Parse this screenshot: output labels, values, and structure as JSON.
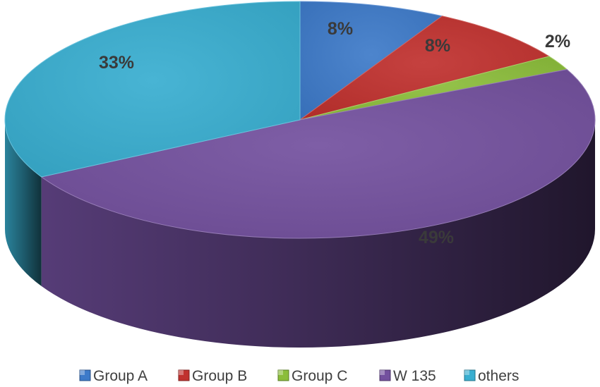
{
  "chart_data": {
    "type": "pie",
    "style": "3d",
    "categories": [
      "Group A",
      "Group B",
      "Group C",
      "W 135",
      "others"
    ],
    "values": [
      8,
      8,
      2,
      49,
      33
    ],
    "unit": "%",
    "data_labels": [
      "8%",
      "8%",
      "2%",
      "49%",
      "33%"
    ],
    "colors": [
      "#3d7ac9",
      "#c0312e",
      "#8bbd3a",
      "#73509e",
      "#38aed0"
    ],
    "legend": {
      "placement": "bottom",
      "entries": [
        "Group A",
        "Group B",
        "Group C",
        "W 135",
        "others"
      ]
    }
  }
}
